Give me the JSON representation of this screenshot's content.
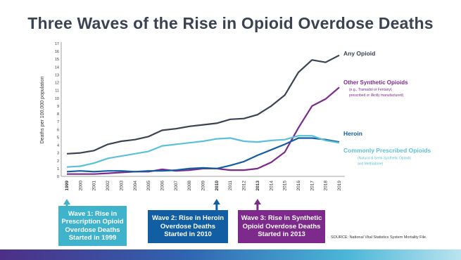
{
  "chart_data": {
    "type": "line",
    "title": "Three Waves of the Rise in Opioid Overdose Deaths",
    "ylabel": "Deaths per 100,000 population",
    "xlabel": "",
    "ylim": [
      0,
      17
    ],
    "yticks": [
      0,
      1,
      2,
      3,
      4,
      5,
      6,
      7,
      8,
      9,
      10,
      11,
      12,
      13,
      14,
      15,
      16,
      17
    ],
    "x": [
      "1999",
      "2000",
      "2001",
      "2002",
      "2003",
      "2004",
      "2005",
      "2006",
      "2007",
      "2008",
      "2009",
      "2010",
      "2011",
      "2012",
      "2013",
      "2014",
      "2015",
      "2016",
      "2017",
      "2018",
      "2019"
    ],
    "grid": false,
    "series": [
      {
        "name": "Any Opioid",
        "color": "#3b4252",
        "label_lines": [
          "Any Opioid"
        ],
        "values": [
          2.9,
          3.0,
          3.3,
          4.1,
          4.5,
          4.7,
          5.1,
          5.9,
          6.1,
          6.4,
          6.6,
          6.8,
          7.3,
          7.4,
          7.9,
          9.0,
          10.4,
          13.3,
          14.9,
          14.6,
          15.5
        ]
      },
      {
        "name": "Other Synthetic Opioids",
        "color": "#7d2a8c",
        "label_lines": [
          "Other Synthetic Opioids"
        ],
        "note_lines": [
          "(e.g., Tramadol or Fentanyl,",
          "prescribed or illicitly manufactured)"
        ],
        "values": [
          0.3,
          0.3,
          0.3,
          0.4,
          0.5,
          0.6,
          0.6,
          0.9,
          0.7,
          0.8,
          1.0,
          1.0,
          0.8,
          0.8,
          1.0,
          1.8,
          3.1,
          6.2,
          9.0,
          9.9,
          11.4
        ]
      },
      {
        "name": "Heroin",
        "color": "#125ea3",
        "label_lines": [
          "Heroin"
        ],
        "values": [
          0.6,
          0.7,
          0.6,
          0.7,
          0.7,
          0.6,
          0.7,
          0.7,
          0.8,
          1.0,
          1.1,
          1.0,
          1.4,
          1.9,
          2.7,
          3.4,
          4.1,
          4.9,
          4.9,
          4.7,
          4.4
        ]
      },
      {
        "name": "Commonly Prescribed Opioids",
        "color": "#5bc0d8",
        "label_lines": [
          "Commonly Prescribed Opioids"
        ],
        "note_lines": [
          "(Natural & Semi-Synthetic Opioids",
          "and Methadone)"
        ],
        "values": [
          1.2,
          1.3,
          1.7,
          2.3,
          2.6,
          2.9,
          3.2,
          3.9,
          4.1,
          4.3,
          4.5,
          4.8,
          4.9,
          4.5,
          4.4,
          4.6,
          4.7,
          5.2,
          5.2,
          4.6,
          4.3
        ]
      }
    ],
    "waves": [
      {
        "label": "Wave 1: Rise in Prescription Opioid Overdose Deaths Started in 1999",
        "year": "1999",
        "color": "#3fb3cc"
      },
      {
        "label": "Wave 2: Rise in Heroin Overdose Deaths Started in 2010",
        "year": "2010",
        "color": "#125ea3"
      },
      {
        "label": "Wave 3: Rise in Synthetic Opioid Overdose Deaths Started in 2013",
        "year": "2013",
        "color": "#7d2a8c"
      }
    ],
    "source": "SOURCE: National Vital Statistics System Mortality File."
  }
}
